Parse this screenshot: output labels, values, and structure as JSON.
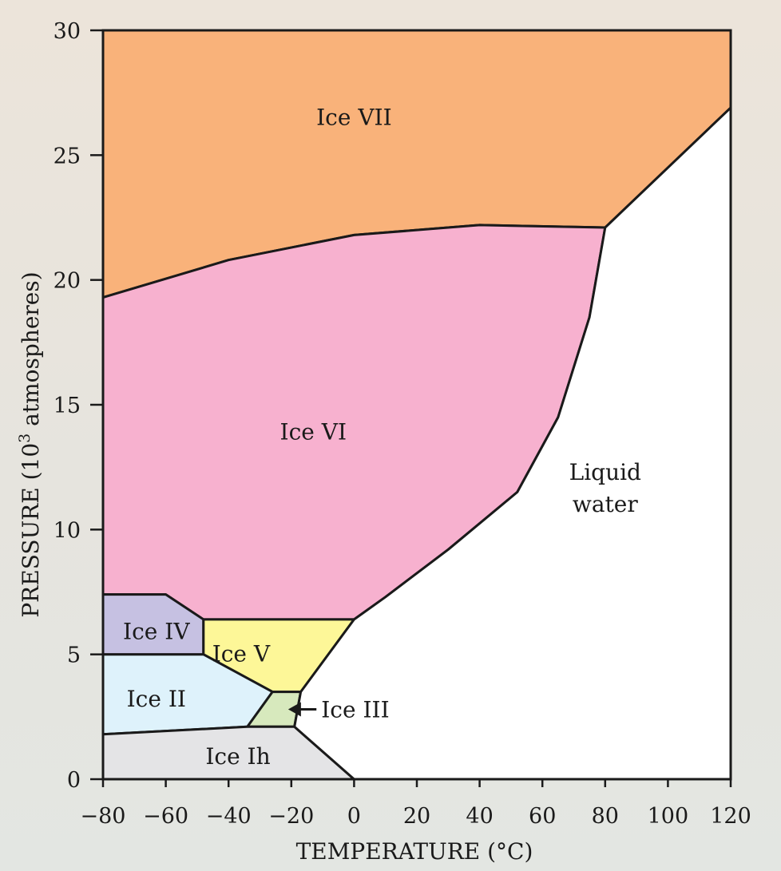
{
  "chart_data": {
    "type": "area",
    "xlabel": "TEMPERATURE (°C)",
    "ylabel_prefix": "PRESSURE (10",
    "ylabel_sup": "3",
    "ylabel_suffix": " atmospheres)",
    "xlim": [
      -80,
      120
    ],
    "ylim": [
      0,
      30
    ],
    "x_ticks": [
      -80,
      -60,
      -40,
      -20,
      0,
      20,
      40,
      60,
      80,
      100,
      120
    ],
    "x_tick_labels": [
      "−80",
      "−60",
      "−40",
      "−20",
      "0",
      "20",
      "40",
      "60",
      "80",
      "100",
      "120"
    ],
    "y_ticks": [
      0,
      5,
      10,
      15,
      20,
      25,
      30
    ],
    "y_tick_labels": [
      "0",
      "5",
      "10",
      "15",
      "20",
      "25",
      "30"
    ],
    "grid": false,
    "regions": [
      {
        "name": "Ice VII",
        "color": "#f9b27a",
        "label": "Ice VII",
        "label_at": [
          0,
          26.5
        ],
        "boundary": [
          [
            -80,
            30
          ],
          [
            120,
            30
          ],
          [
            120,
            26.9
          ],
          [
            80,
            22.1
          ],
          [
            40,
            22.2
          ],
          [
            0,
            21.8
          ],
          [
            -40,
            20.8
          ],
          [
            -80,
            19.3
          ]
        ]
      },
      {
        "name": "Ice VI",
        "color": "#f7b1cf",
        "label": "Ice VI",
        "label_at": [
          -13,
          13.9
        ],
        "boundary": [
          [
            -80,
            19.3
          ],
          [
            -40,
            20.8
          ],
          [
            0,
            21.8
          ],
          [
            40,
            22.2
          ],
          [
            80,
            22.1
          ],
          [
            75,
            18.5
          ],
          [
            65,
            14.5
          ],
          [
            52,
            11.5
          ],
          [
            30,
            9.2
          ],
          [
            10,
            7.3
          ],
          [
            0,
            6.4
          ],
          [
            -48,
            6.4
          ],
          [
            -60,
            7.4
          ],
          [
            -80,
            7.4
          ]
        ]
      },
      {
        "name": "Ice IV",
        "color": "#c6c1e2",
        "label": "Ice IV",
        "label_at": [
          -63,
          5.9
        ],
        "boundary": [
          [
            -80,
            7.4
          ],
          [
            -60,
            7.4
          ],
          [
            -48,
            6.4
          ],
          [
            -48,
            5
          ],
          [
            -80,
            5
          ]
        ]
      },
      {
        "name": "Ice V",
        "color": "#fdf798",
        "label": "Ice V",
        "label_at": [
          -36,
          5.0
        ],
        "boundary": [
          [
            -48,
            6.4
          ],
          [
            0,
            6.4
          ],
          [
            -17,
            3.5
          ],
          [
            -26,
            3.5
          ],
          [
            -48,
            5
          ]
        ]
      },
      {
        "name": "Ice II",
        "color": "#def2fb",
        "label": "Ice II",
        "label_at": [
          -63,
          3.2
        ],
        "boundary": [
          [
            -80,
            5
          ],
          [
            -48,
            5
          ],
          [
            -26,
            3.5
          ],
          [
            -34,
            2.1
          ],
          [
            -80,
            1.8
          ]
        ]
      },
      {
        "name": "Ice III",
        "color": "#d7e9bd",
        "label": "Ice III",
        "label_at": [
          0,
          2.6
        ],
        "boundary": [
          [
            -26,
            3.5
          ],
          [
            -17,
            3.5
          ],
          [
            -19,
            2.1
          ],
          [
            -34,
            2.1
          ]
        ]
      },
      {
        "name": "Ice Ih",
        "color": "#e4e4e6",
        "label": "Ice Ih",
        "label_at": [
          -37,
          0.9
        ],
        "boundary": [
          [
            -80,
            1.8
          ],
          [
            -34,
            2.1
          ],
          [
            -19,
            2.1
          ],
          [
            0,
            0
          ],
          [
            -80,
            0
          ]
        ]
      },
      {
        "name": "Liquid water",
        "color": "#ffffff",
        "label_lines": [
          "Liquid",
          "water"
        ],
        "label_at": [
          80,
          12.0
        ],
        "boundary": [
          [
            120,
            26.9
          ],
          [
            80,
            22.1
          ],
          [
            75,
            18.5
          ],
          [
            65,
            14.5
          ],
          [
            52,
            11.5
          ],
          [
            30,
            9.2
          ],
          [
            10,
            7.3
          ],
          [
            0,
            6.4
          ],
          [
            -17,
            3.5
          ],
          [
            -19,
            2.1
          ],
          [
            0,
            0
          ],
          [
            120,
            0
          ]
        ]
      }
    ],
    "annotations": [
      {
        "text": "Ice III",
        "arrow_from": [
          -12,
          2.8
        ],
        "arrow_to": [
          -21,
          2.8
        ]
      }
    ]
  }
}
